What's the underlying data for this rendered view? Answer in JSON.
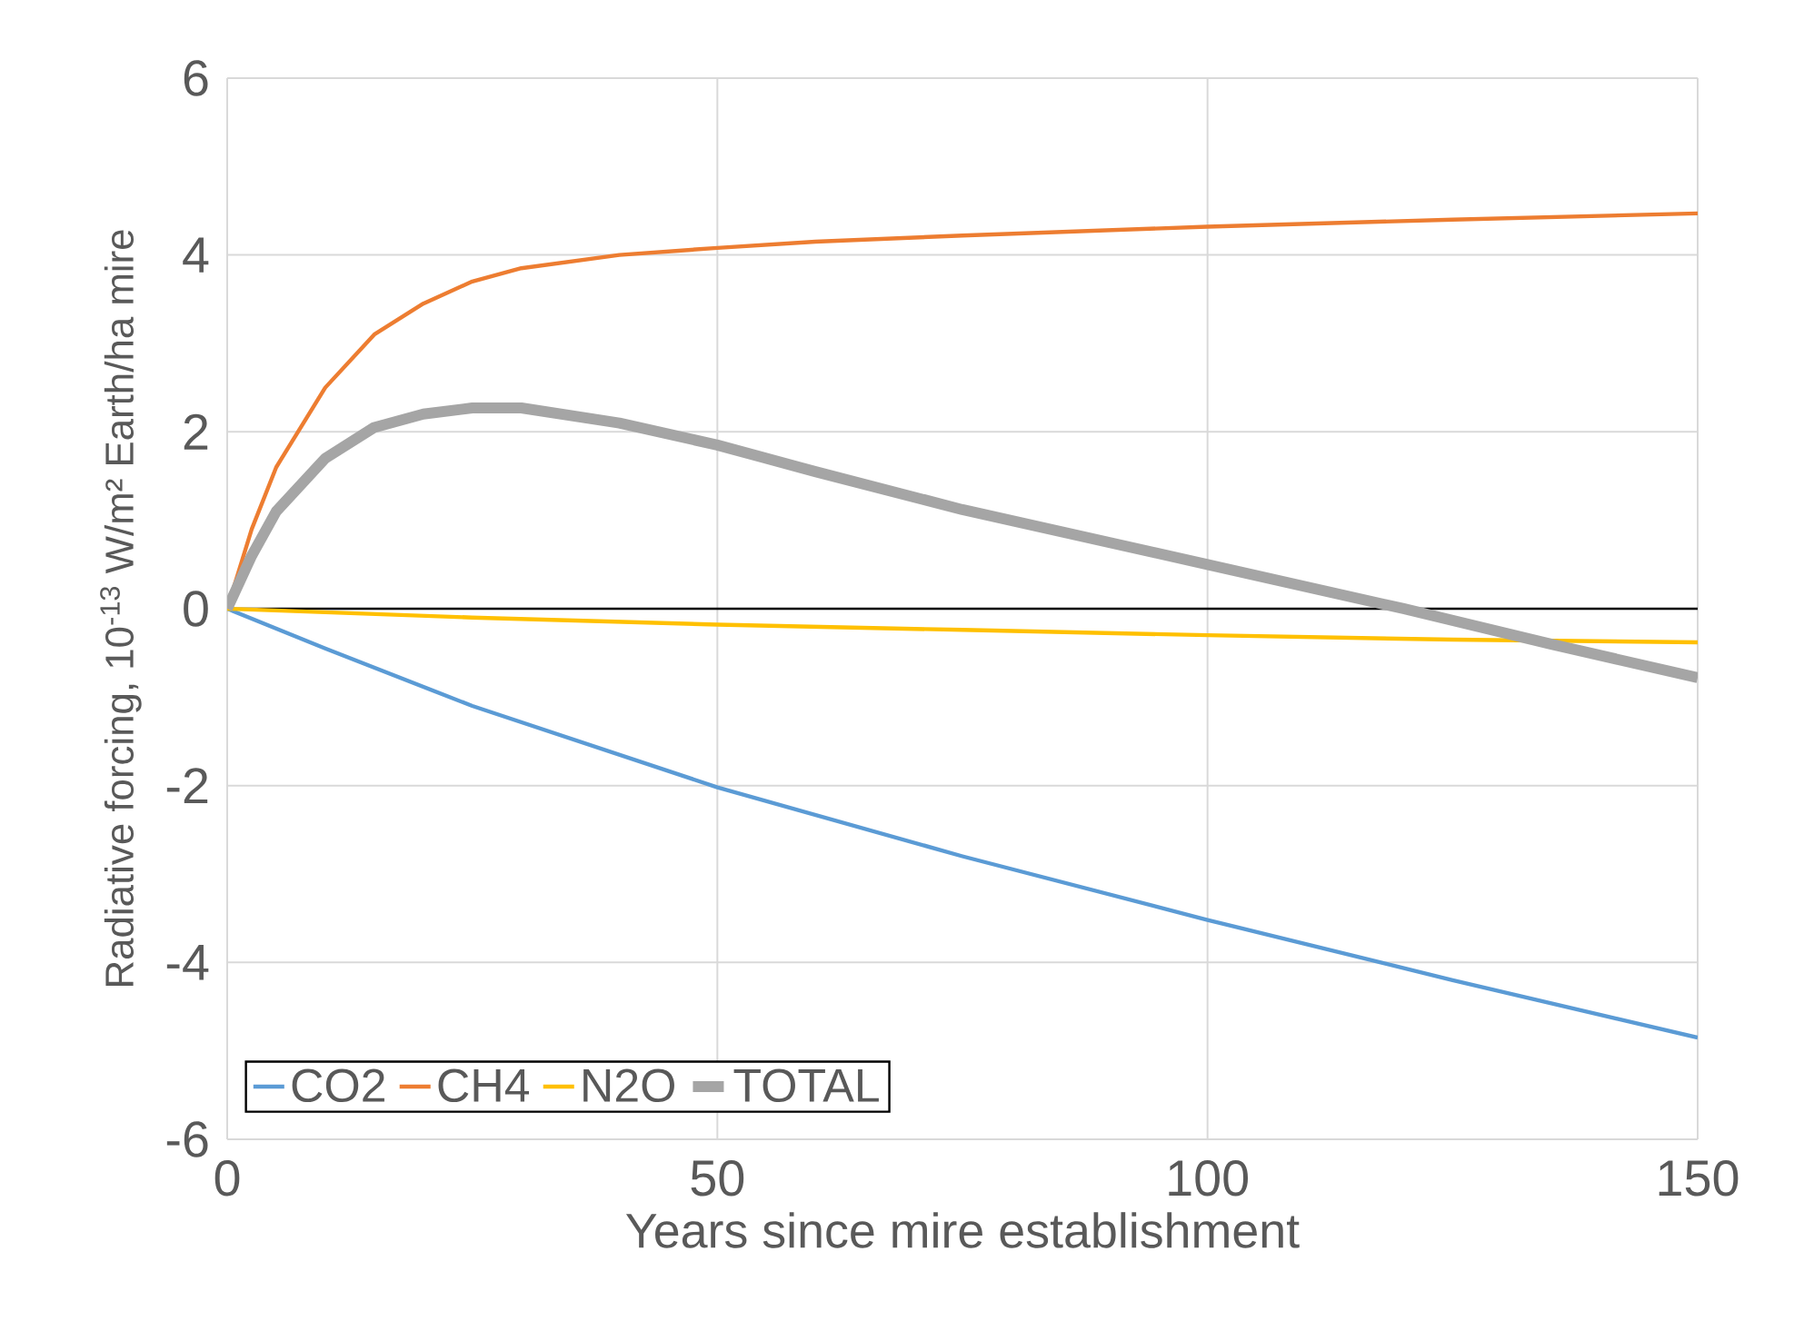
{
  "chart_data": {
    "type": "line",
    "xlabel": "Years since mire establishment",
    "ylabel": "Radiative forcing, 10$^{-13}$ W/m² Earth/ha mire",
    "xlim": [
      0,
      150
    ],
    "xticks": [
      0,
      50,
      100,
      150
    ],
    "ylim": [
      -6,
      6
    ],
    "yticks": [
      -6,
      -4,
      -2,
      0,
      2,
      4,
      6
    ],
    "grid": true,
    "legend": "bottom left",
    "marker": "none",
    "line_style": "solid",
    "ref_lines": [
      {
        "axis": "y",
        "value": 0,
        "color": "#000000"
      }
    ],
    "series": [
      {
        "name": "CO2",
        "color": "#5b9bd5",
        "x": [
          0,
          10,
          25,
          50,
          75,
          100,
          125,
          150
        ],
        "values": [
          0,
          -0.45,
          -1.1,
          -2.02,
          -2.8,
          -3.52,
          -4.2,
          -4.85
        ]
      },
      {
        "name": "CH4",
        "color": "#ed7d31",
        "x": [
          0,
          2.5,
          5,
          10,
          15,
          20,
          25,
          30,
          40,
          50,
          60,
          75,
          100,
          125,
          150
        ],
        "values": [
          0,
          0.9,
          1.6,
          2.5,
          3.1,
          3.45,
          3.7,
          3.85,
          4.0,
          4.08,
          4.15,
          4.22,
          4.32,
          4.4,
          4.47
        ]
      },
      {
        "name": "N2O",
        "color": "#ffc000",
        "x": [
          0,
          25,
          50,
          75,
          100,
          125,
          150
        ],
        "values": [
          0,
          -0.1,
          -0.18,
          -0.24,
          -0.3,
          -0.35,
          -0.38
        ]
      },
      {
        "name": "TOTAL",
        "color": "#a5a5a5",
        "x": [
          0,
          2.5,
          5,
          10,
          15,
          20,
          25,
          30,
          40,
          50,
          60,
          75,
          100,
          120,
          135,
          150
        ],
        "values": [
          0,
          0.6,
          1.1,
          1.7,
          2.05,
          2.2,
          2.27,
          2.27,
          2.1,
          1.85,
          1.55,
          1.12,
          0.5,
          0.0,
          -0.4,
          -0.78
        ]
      }
    ]
  }
}
